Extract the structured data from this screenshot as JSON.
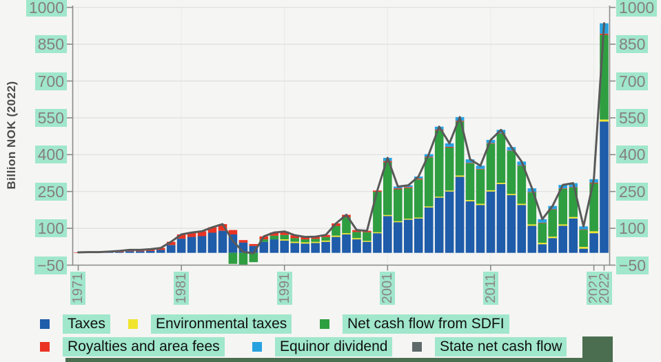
{
  "highlight_color": "#a0e7cc",
  "page_background": "#f5f5f3",
  "chart_data": {
    "type": "bar",
    "subtype": "stacked-bar-with-line",
    "title": "",
    "xlabel": "",
    "ylabel": "Billion NOK (2022)",
    "ylim": [
      -50,
      1000
    ],
    "yticks": [
      -50,
      100,
      250,
      400,
      550,
      700,
      850,
      1000
    ],
    "ytick_labels": [
      "−50",
      "100",
      "250",
      "400",
      "550",
      "700",
      "850",
      "1000"
    ],
    "xticks": [
      1971,
      1981,
      1991,
      2001,
      2011,
      2021,
      2022
    ],
    "grid": "horizontal-light",
    "legend_position": "bottom",
    "axis_color": "#8a8a8a",
    "gridline_color": "#dedede",
    "vgridline_color": "#e9e9e7",
    "plot_background": "#f5f5f3",
    "years": [
      1971,
      1972,
      1973,
      1974,
      1975,
      1976,
      1977,
      1978,
      1979,
      1980,
      1981,
      1982,
      1983,
      1984,
      1985,
      1986,
      1987,
      1988,
      1989,
      1990,
      1991,
      1992,
      1993,
      1994,
      1995,
      1996,
      1997,
      1998,
      1999,
      2000,
      2001,
      2002,
      2003,
      2004,
      2005,
      2006,
      2007,
      2008,
      2009,
      2010,
      2011,
      2012,
      2013,
      2014,
      2015,
      2016,
      2017,
      2018,
      2019,
      2020,
      2021,
      2022
    ],
    "series": [
      {
        "name": "Taxes",
        "color": "#1f5ca9",
        "values": [
          0,
          1,
          1,
          2,
          3,
          6,
          6,
          8,
          12,
          32,
          58,
          65,
          68,
          82,
          90,
          75,
          42,
          28,
          45,
          55,
          50,
          40,
          38,
          40,
          45,
          65,
          75,
          55,
          45,
          80,
          150,
          125,
          135,
          140,
          185,
          225,
          250,
          310,
          210,
          195,
          250,
          280,
          235,
          195,
          110,
          35,
          60,
          110,
          140,
          17,
          80,
          535
        ]
      },
      {
        "name": "Environmental taxes",
        "color": "#f0e52c",
        "values": [
          0,
          0,
          0,
          0,
          0,
          0,
          0,
          0,
          0,
          0,
          0,
          0,
          0,
          0,
          0,
          0,
          0,
          0,
          0,
          0,
          5,
          5,
          5,
          5,
          5,
          5,
          5,
          5,
          4,
          4,
          4,
          4,
          4,
          4,
          4,
          4,
          4,
          5,
          5,
          5,
          5,
          5,
          5,
          5,
          6,
          6,
          6,
          6,
          6,
          7,
          8,
          8
        ]
      },
      {
        "name": "Net cash flow from SDFI",
        "color": "#2f9e41",
        "values": [
          0,
          0,
          0,
          0,
          0,
          0,
          0,
          0,
          0,
          0,
          0,
          0,
          0,
          0,
          0,
          -45,
          -48,
          -38,
          10,
          15,
          18,
          15,
          12,
          12,
          14,
          40,
          65,
          25,
          35,
          165,
          215,
          130,
          125,
          155,
          200,
          270,
          175,
          220,
          150,
          140,
          190,
          200,
          175,
          155,
          130,
          80,
          110,
          145,
          120,
          70,
          195,
          345
        ]
      },
      {
        "name": "Royalties and area fees",
        "color": "#ea3323",
        "values": [
          2,
          2,
          2,
          3,
          5,
          6,
          6,
          7,
          8,
          13,
          17,
          18,
          20,
          22,
          27,
          18,
          10,
          8,
          12,
          13,
          14,
          12,
          10,
          9,
          9,
          10,
          10,
          8,
          6,
          5,
          5,
          4,
          4,
          4,
          3,
          3,
          3,
          3,
          2,
          2,
          2,
          2,
          2,
          2,
          2,
          2,
          2,
          2,
          2,
          2,
          3,
          5
        ]
      },
      {
        "name": "Equinor dividend",
        "color": "#27a2e0",
        "values": [
          0,
          0,
          0,
          0,
          0,
          0,
          0,
          0,
          0,
          0,
          0,
          0,
          0,
          0,
          0,
          0,
          0,
          0,
          0,
          0,
          0,
          0,
          0,
          0,
          0,
          0,
          0,
          0,
          0,
          0,
          13,
          7,
          7,
          8,
          10,
          12,
          14,
          15,
          14,
          13,
          13,
          14,
          14,
          15,
          15,
          14,
          13,
          14,
          16,
          12,
          14,
          42
        ]
      }
    ],
    "line_series": {
      "name": "State net cash flow",
      "color": "#595959",
      "values": [
        2,
        3,
        3,
        5,
        8,
        12,
        12,
        15,
        20,
        45,
        75,
        83,
        88,
        104,
        117,
        48,
        4,
        -2,
        67,
        83,
        87,
        72,
        65,
        66,
        73,
        120,
        155,
        93,
        90,
        254,
        387,
        270,
        275,
        311,
        402,
        514,
        446,
        553,
        381,
        355,
        460,
        501,
        431,
        372,
        263,
        137,
        191,
        277,
        284,
        108,
        300,
        935
      ]
    },
    "stack_order": [
      "Taxes",
      "Environmental taxes",
      "Net cash flow from SDFI",
      "Royalties and area fees",
      "Equinor dividend"
    ]
  },
  "legend": {
    "rows": [
      [
        {
          "label": "Taxes",
          "color": "#1f5ca9"
        },
        {
          "label": "Environmental taxes",
          "color": "#f0e52c"
        },
        {
          "label": "Net cash flow from SDFI",
          "color": "#2f9e41"
        }
      ],
      [
        {
          "label": "Royalties and area fees",
          "color": "#ea3323"
        },
        {
          "label": "Equinor dividend",
          "color": "#27a2e0"
        },
        {
          "label": "State net cash flow",
          "color": "#5e6a6a"
        }
      ]
    ]
  },
  "footer": {
    "accent_color": "#4a6e4f"
  }
}
